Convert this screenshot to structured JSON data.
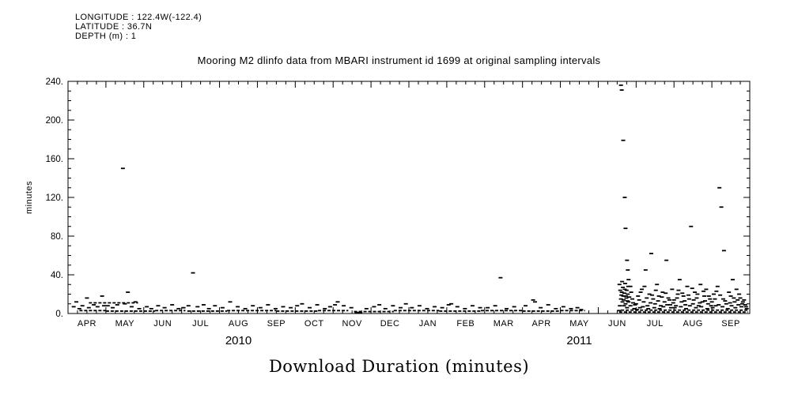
{
  "header": {
    "lines": [
      "LONGITUDE : 122.4W(-122.4)",
      "LATITUDE : 36.7N",
      "DEPTH (m) : 1"
    ]
  },
  "colors": {
    "foreground": "#000000",
    "background": "#ffffff"
  },
  "chart_data": {
    "type": "scatter",
    "title": "Mooring M2 dlinfo data from MBARI instrument id 1699 at original sampling intervals",
    "xlabel_bottom": "Download Duration (minutes)",
    "ylabel": "minutes",
    "ylim": [
      0,
      240
    ],
    "ytick_step": 40,
    "ytick_minor_step": 10,
    "ytick_labels": [
      "0.",
      "40.",
      "80.",
      "120.",
      "160.",
      "200.",
      "240."
    ],
    "x_months": [
      "APR",
      "MAY",
      "JUN",
      "JUL",
      "AUG",
      "SEP",
      "OCT",
      "NOV",
      "DEC",
      "JAN",
      "FEB",
      "MAR",
      "APR",
      "MAY",
      "JUN",
      "JUL",
      "AUG",
      "SEP"
    ],
    "x_minor_ticks_per_month": 4,
    "x_years": [
      {
        "label": "2010",
        "center_month": 4.5
      },
      {
        "label": "2011",
        "center_month": 13.5
      }
    ],
    "marker": "horizontal-dash",
    "grid": false,
    "legend": "none",
    "baseline_segments": [
      [
        0.3,
        1.0,
        3
      ],
      [
        0.55,
        1.85,
        11
      ],
      [
        1.0,
        2.3,
        2.5
      ],
      [
        2.3,
        3.1,
        3
      ],
      [
        3.15,
        4.2,
        2.5
      ],
      [
        4.2,
        5.5,
        3
      ],
      [
        5.5,
        6.6,
        2.5
      ],
      [
        6.6,
        7.4,
        3
      ],
      [
        7.55,
        8.6,
        2
      ],
      [
        8.6,
        9.8,
        3
      ],
      [
        9.8,
        10.9,
        2.5
      ],
      [
        10.9,
        12.0,
        3
      ],
      [
        12.0,
        13.0,
        2.5
      ],
      [
        13.0,
        13.65,
        3
      ],
      [
        14.55,
        17.95,
        1.5
      ],
      [
        14.6,
        17.95,
        3.5
      ]
    ],
    "points": [
      [
        0.15,
        7
      ],
      [
        0.22,
        12
      ],
      [
        0.3,
        5
      ],
      [
        0.38,
        8
      ],
      [
        0.5,
        16
      ],
      [
        0.55,
        6
      ],
      [
        0.68,
        9
      ],
      [
        0.78,
        7
      ],
      [
        0.9,
        18
      ],
      [
        0.95,
        8
      ],
      [
        1.05,
        8
      ],
      [
        1.18,
        6
      ],
      [
        1.3,
        9
      ],
      [
        1.45,
        150
      ],
      [
        1.5,
        10
      ],
      [
        1.58,
        22
      ],
      [
        1.68,
        7
      ],
      [
        1.78,
        12
      ],
      [
        1.88,
        5
      ],
      [
        2.08,
        7
      ],
      [
        2.2,
        5
      ],
      [
        2.38,
        8
      ],
      [
        2.55,
        6
      ],
      [
        2.75,
        9
      ],
      [
        2.92,
        5
      ],
      [
        3.05,
        6
      ],
      [
        3.18,
        8
      ],
      [
        3.3,
        42
      ],
      [
        3.42,
        7
      ],
      [
        3.58,
        9
      ],
      [
        3.72,
        5
      ],
      [
        3.88,
        8
      ],
      [
        4.08,
        6
      ],
      [
        4.28,
        12
      ],
      [
        4.48,
        7
      ],
      [
        4.68,
        5
      ],
      [
        4.88,
        8
      ],
      [
        5.08,
        6
      ],
      [
        5.28,
        9
      ],
      [
        5.48,
        5
      ],
      [
        5.68,
        7
      ],
      [
        5.88,
        6
      ],
      [
        6.05,
        8
      ],
      [
        6.18,
        10
      ],
      [
        6.38,
        6
      ],
      [
        6.58,
        9
      ],
      [
        6.78,
        5
      ],
      [
        6.92,
        7
      ],
      [
        7.05,
        9
      ],
      [
        7.12,
        12
      ],
      [
        7.28,
        8
      ],
      [
        7.48,
        6
      ],
      [
        7.62,
        1
      ],
      [
        7.72,
        1
      ],
      [
        7.88,
        5
      ],
      [
        8.08,
        7
      ],
      [
        8.22,
        9
      ],
      [
        8.38,
        5
      ],
      [
        8.58,
        8
      ],
      [
        8.78,
        6
      ],
      [
        8.92,
        10
      ],
      [
        9.08,
        6
      ],
      [
        9.28,
        8
      ],
      [
        9.48,
        5
      ],
      [
        9.68,
        7
      ],
      [
        9.88,
        6
      ],
      [
        10.05,
        9
      ],
      [
        10.12,
        10
      ],
      [
        10.28,
        7
      ],
      [
        10.48,
        5
      ],
      [
        10.68,
        8
      ],
      [
        10.88,
        6
      ],
      [
        11.08,
        6
      ],
      [
        11.28,
        8
      ],
      [
        11.42,
        37
      ],
      [
        11.58,
        5
      ],
      [
        11.78,
        7
      ],
      [
        12.08,
        8
      ],
      [
        12.28,
        14
      ],
      [
        12.33,
        12
      ],
      [
        12.48,
        6
      ],
      [
        12.68,
        9
      ],
      [
        12.88,
        5
      ],
      [
        13.08,
        7
      ],
      [
        13.28,
        5
      ],
      [
        13.45,
        6
      ],
      [
        13.55,
        4
      ],
      [
        14.55,
        3
      ],
      [
        14.56,
        30
      ],
      [
        14.57,
        8
      ],
      [
        14.58,
        24
      ],
      [
        14.6,
        236
      ],
      [
        14.6,
        15
      ],
      [
        14.61,
        19
      ],
      [
        14.62,
        231
      ],
      [
        14.62,
        22
      ],
      [
        14.63,
        33
      ],
      [
        14.64,
        12
      ],
      [
        14.65,
        27
      ],
      [
        14.66,
        179
      ],
      [
        14.66,
        18
      ],
      [
        14.67,
        14
      ],
      [
        14.68,
        8
      ],
      [
        14.69,
        21
      ],
      [
        14.7,
        120
      ],
      [
        14.7,
        25
      ],
      [
        14.71,
        31
      ],
      [
        14.72,
        88
      ],
      [
        14.72,
        10
      ],
      [
        14.73,
        18
      ],
      [
        14.74,
        16
      ],
      [
        14.75,
        24
      ],
      [
        14.76,
        55
      ],
      [
        14.76,
        6
      ],
      [
        14.77,
        13
      ],
      [
        14.78,
        45
      ],
      [
        14.78,
        20
      ],
      [
        14.79,
        28
      ],
      [
        14.8,
        35
      ],
      [
        14.8,
        12
      ],
      [
        14.82,
        17
      ],
      [
        14.85,
        28
      ],
      [
        14.85,
        8
      ],
      [
        14.87,
        22
      ],
      [
        14.9,
        15
      ],
      [
        14.92,
        11
      ],
      [
        14.95,
        5
      ],
      [
        14.97,
        9
      ],
      [
        15.0,
        10
      ],
      [
        15.02,
        4
      ],
      [
        15.05,
        18
      ],
      [
        15.08,
        14
      ],
      [
        15.1,
        6
      ],
      [
        15.12,
        22
      ],
      [
        15.15,
        25
      ],
      [
        15.18,
        7
      ],
      [
        15.2,
        12
      ],
      [
        15.22,
        28
      ],
      [
        15.25,
        45
      ],
      [
        15.28,
        16
      ],
      [
        15.3,
        8
      ],
      [
        15.32,
        5
      ],
      [
        15.35,
        20
      ],
      [
        15.38,
        11
      ],
      [
        15.4,
        62
      ],
      [
        15.42,
        19
      ],
      [
        15.45,
        15
      ],
      [
        15.48,
        6
      ],
      [
        15.5,
        10
      ],
      [
        15.52,
        24
      ],
      [
        15.55,
        30
      ],
      [
        15.58,
        13
      ],
      [
        15.6,
        18
      ],
      [
        15.62,
        5
      ],
      [
        15.65,
        8
      ],
      [
        15.68,
        17
      ],
      [
        15.7,
        22
      ],
      [
        15.72,
        7
      ],
      [
        15.75,
        12
      ],
      [
        15.78,
        21
      ],
      [
        15.8,
        55
      ],
      [
        15.82,
        9
      ],
      [
        15.85,
        16
      ],
      [
        15.88,
        14
      ],
      [
        15.9,
        9
      ],
      [
        15.92,
        6
      ],
      [
        15.95,
        25
      ],
      [
        15.98,
        11
      ],
      [
        16.0,
        14
      ],
      [
        16.02,
        6
      ],
      [
        16.05,
        8
      ],
      [
        16.08,
        16
      ],
      [
        16.1,
        20
      ],
      [
        16.12,
        24
      ],
      [
        16.15,
        35
      ],
      [
        16.18,
        7
      ],
      [
        16.2,
        12
      ],
      [
        16.22,
        21
      ],
      [
        16.25,
        18
      ],
      [
        16.28,
        13
      ],
      [
        16.3,
        9
      ],
      [
        16.32,
        5
      ],
      [
        16.35,
        28
      ],
      [
        16.38,
        19
      ],
      [
        16.4,
        15
      ],
      [
        16.42,
        8
      ],
      [
        16.45,
        90
      ],
      [
        16.48,
        26
      ],
      [
        16.5,
        10
      ],
      [
        16.52,
        14
      ],
      [
        16.55,
        22
      ],
      [
        16.58,
        6
      ],
      [
        16.6,
        16
      ],
      [
        16.62,
        20
      ],
      [
        16.65,
        8
      ],
      [
        16.68,
        11
      ],
      [
        16.7,
        30
      ],
      [
        16.72,
        7
      ],
      [
        16.75,
        12
      ],
      [
        16.78,
        23
      ],
      [
        16.8,
        18
      ],
      [
        16.82,
        13
      ],
      [
        16.85,
        25
      ],
      [
        16.88,
        5
      ],
      [
        16.9,
        10
      ],
      [
        16.92,
        18
      ],
      [
        16.95,
        15
      ],
      [
        16.98,
        8
      ],
      [
        17.0,
        12
      ],
      [
        17.02,
        6
      ],
      [
        17.05,
        20
      ],
      [
        17.08,
        15
      ],
      [
        17.1,
        8
      ],
      [
        17.12,
        23
      ],
      [
        17.15,
        28
      ],
      [
        17.18,
        9
      ],
      [
        17.2,
        130
      ],
      [
        17.22,
        19
      ],
      [
        17.25,
        110
      ],
      [
        17.28,
        7
      ],
      [
        17.3,
        15
      ],
      [
        17.32,
        65
      ],
      [
        17.35,
        13
      ],
      [
        17.38,
        10
      ],
      [
        17.42,
        5
      ],
      [
        17.45,
        22
      ],
      [
        17.48,
        11
      ],
      [
        17.5,
        18
      ],
      [
        17.52,
        8
      ],
      [
        17.55,
        35
      ],
      [
        17.58,
        16
      ],
      [
        17.6,
        12
      ],
      [
        17.62,
        6
      ],
      [
        17.65,
        25
      ],
      [
        17.68,
        14
      ],
      [
        17.7,
        9
      ],
      [
        17.72,
        20
      ],
      [
        17.75,
        16
      ],
      [
        17.78,
        7
      ],
      [
        17.8,
        10
      ],
      [
        17.82,
        12
      ],
      [
        17.85,
        14
      ],
      [
        17.88,
        9
      ],
      [
        17.9,
        7
      ],
      [
        17.92,
        5
      ]
    ]
  }
}
